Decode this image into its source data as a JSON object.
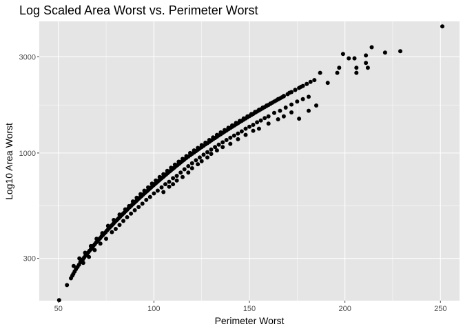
{
  "chart_data": {
    "type": "scatter",
    "title": "Log Scaled Area Worst vs. Perimeter Worst",
    "xlabel": "Perimeter Worst",
    "ylabel": "Log10 Area Worst",
    "xlim": [
      40,
      260
    ],
    "ylim": [
      185,
      4500
    ],
    "y_scale": "log10",
    "x_ticks": [
      50,
      100,
      150,
      200,
      250
    ],
    "x_tick_labels": [
      "50",
      "100",
      "150",
      "200",
      "250"
    ],
    "y_ticks": [
      300,
      1000,
      3000
    ],
    "y_tick_labels": [
      "300",
      "1000",
      "3000"
    ],
    "grid": true,
    "legend": "none",
    "colors": {
      "panel": "#e5e5e5",
      "grid": "#ffffff",
      "point": "#000000",
      "tick": "#4d4d4d"
    },
    "points": [
      [
        50.4,
        186
      ],
      [
        54.5,
        221
      ],
      [
        56.6,
        239
      ],
      [
        57.3,
        246
      ],
      [
        57.8,
        251
      ],
      [
        58.5,
        258
      ],
      [
        59.2,
        265
      ],
      [
        60.0,
        272
      ],
      [
        60.8,
        279
      ],
      [
        61.5,
        287
      ],
      [
        62.1,
        290
      ],
      [
        62.9,
        297
      ],
      [
        63.5,
        303
      ],
      [
        64.2,
        309
      ],
      [
        64.9,
        312
      ],
      [
        65.6,
        321
      ],
      [
        66.3,
        327
      ],
      [
        67.0,
        333
      ],
      [
        67.8,
        340
      ],
      [
        68.4,
        347
      ],
      [
        69.1,
        353
      ],
      [
        69.8,
        360
      ],
      [
        70.5,
        365
      ],
      [
        71.2,
        372
      ],
      [
        71.9,
        378
      ],
      [
        72.6,
        386
      ],
      [
        73.3,
        391
      ],
      [
        74.0,
        398
      ],
      [
        74.7,
        404
      ],
      [
        75.4,
        412
      ],
      [
        76.1,
        419
      ],
      [
        76.8,
        426
      ],
      [
        77.5,
        433
      ],
      [
        78.2,
        440
      ],
      [
        78.9,
        447
      ],
      [
        79.6,
        455
      ],
      [
        80.3,
        462
      ],
      [
        81.0,
        469
      ],
      [
        81.7,
        476
      ],
      [
        82.4,
        484
      ],
      [
        83.1,
        491
      ],
      [
        83.8,
        499
      ],
      [
        84.5,
        506
      ],
      [
        85.2,
        514
      ],
      [
        85.9,
        522
      ],
      [
        86.6,
        530
      ],
      [
        87.3,
        538
      ],
      [
        88.0,
        546
      ],
      [
        88.7,
        554
      ],
      [
        89.4,
        562
      ],
      [
        90.1,
        570
      ],
      [
        90.8,
        578
      ],
      [
        91.5,
        587
      ],
      [
        92.2,
        595
      ],
      [
        92.9,
        604
      ],
      [
        93.6,
        612
      ],
      [
        94.3,
        621
      ],
      [
        95.0,
        630
      ],
      [
        95.7,
        638
      ],
      [
        96.4,
        647
      ],
      [
        97.1,
        656
      ],
      [
        97.8,
        665
      ],
      [
        98.5,
        674
      ],
      [
        99.2,
        684
      ],
      [
        99.9,
        693
      ],
      [
        100.6,
        702
      ],
      [
        101.3,
        712
      ],
      [
        102.0,
        721
      ],
      [
        102.7,
        731
      ],
      [
        103.4,
        741
      ],
      [
        104.1,
        750
      ],
      [
        104.8,
        760
      ],
      [
        105.5,
        770
      ],
      [
        106.2,
        780
      ],
      [
        106.9,
        790
      ],
      [
        107.6,
        801
      ],
      [
        108.3,
        811
      ],
      [
        109.0,
        821
      ],
      [
        109.7,
        832
      ],
      [
        110.4,
        842
      ],
      [
        111.1,
        853
      ],
      [
        111.8,
        864
      ],
      [
        112.5,
        874
      ],
      [
        113.2,
        885
      ],
      [
        113.9,
        896
      ],
      [
        114.6,
        907
      ],
      [
        115.3,
        919
      ],
      [
        116.0,
        930
      ],
      [
        117.0,
        945
      ],
      [
        118.0,
        960
      ],
      [
        119.0,
        975
      ],
      [
        120.0,
        991
      ],
      [
        121.0,
        1006
      ],
      [
        122.0,
        1022
      ],
      [
        123.0,
        1038
      ],
      [
        124.0,
        1054
      ],
      [
        125.0,
        1070
      ],
      [
        126.0,
        1086
      ],
      [
        127.0,
        1103
      ],
      [
        128.0,
        1119
      ],
      [
        129.0,
        1136
      ],
      [
        130.0,
        1153
      ],
      [
        131.0,
        1170
      ],
      [
        132.0,
        1187
      ],
      [
        133.0,
        1205
      ],
      [
        134.0,
        1222
      ],
      [
        135.0,
        1240
      ],
      [
        136.0,
        1258
      ],
      [
        137.0,
        1276
      ],
      [
        138.0,
        1294
      ],
      [
        139.0,
        1312
      ],
      [
        140.0,
        1331
      ],
      [
        141.0,
        1349
      ],
      [
        142.0,
        1368
      ],
      [
        143.0,
        1387
      ],
      [
        144.0,
        1406
      ],
      [
        145.0,
        1425
      ],
      [
        146.0,
        1445
      ],
      [
        147.0,
        1464
      ],
      [
        148.0,
        1484
      ],
      [
        149.0,
        1504
      ],
      [
        150.0,
        1524
      ],
      [
        151.0,
        1544
      ],
      [
        152.0,
        1564
      ],
      [
        153.0,
        1585
      ],
      [
        154.0,
        1606
      ],
      [
        155.0,
        1627
      ],
      [
        156.0,
        1648
      ],
      [
        157.0,
        1669
      ],
      [
        158.0,
        1690
      ],
      [
        159.0,
        1712
      ],
      [
        160.0,
        1733
      ],
      [
        161.0,
        1755
      ],
      [
        162.0,
        1777
      ],
      [
        163.0,
        1800
      ],
      [
        164.0,
        1822
      ],
      [
        165.0,
        1845
      ],
      [
        166.0,
        1867
      ],
      [
        167.0,
        1890
      ],
      [
        168.0,
        1913
      ],
      [
        170.0,
        1960
      ],
      [
        172.0,
        2007
      ],
      [
        174.0,
        2054
      ],
      [
        176.0,
        2103
      ],
      [
        178.0,
        2152
      ],
      [
        180.0,
        2201
      ],
      [
        182.0,
        2252
      ],
      [
        184.0,
        2302
      ],
      [
        63.0,
        285
      ],
      [
        66.0,
        305
      ],
      [
        69.0,
        330
      ],
      [
        72.0,
        355
      ],
      [
        75.0,
        375
      ],
      [
        78.0,
        405
      ],
      [
        80.0,
        420
      ],
      [
        82.0,
        440
      ],
      [
        84.0,
        460
      ],
      [
        86.0,
        480
      ],
      [
        88.0,
        500
      ],
      [
        90.0,
        520
      ],
      [
        92.0,
        540
      ],
      [
        94.0,
        560
      ],
      [
        96.0,
        585
      ],
      [
        98.0,
        605
      ],
      [
        100.0,
        630
      ],
      [
        102.0,
        650
      ],
      [
        104.0,
        675
      ],
      [
        106.0,
        700
      ],
      [
        108.0,
        720
      ],
      [
        110.0,
        750
      ],
      [
        112.0,
        770
      ],
      [
        114.0,
        800
      ],
      [
        116.0,
        830
      ],
      [
        118.0,
        860
      ],
      [
        120.0,
        890
      ],
      [
        122.0,
        920
      ],
      [
        124.0,
        950
      ],
      [
        126.0,
        980
      ],
      [
        128.0,
        1010
      ],
      [
        130.0,
        1040
      ],
      [
        132.0,
        1070
      ],
      [
        134.0,
        1100
      ],
      [
        136.0,
        1130
      ],
      [
        138.0,
        1160
      ],
      [
        140.0,
        1190
      ],
      [
        142.0,
        1220
      ],
      [
        144.0,
        1250
      ],
      [
        146.0,
        1280
      ],
      [
        148.0,
        1320
      ],
      [
        150.0,
        1350
      ],
      [
        152.0,
        1380
      ],
      [
        154.0,
        1420
      ],
      [
        156.0,
        1450
      ],
      [
        158.0,
        1490
      ],
      [
        160.0,
        1520
      ],
      [
        163.0,
        1580
      ],
      [
        166.0,
        1620
      ],
      [
        169.0,
        1680
      ],
      [
        172.0,
        1740
      ],
      [
        175.0,
        1800
      ],
      [
        178.0,
        1850
      ],
      [
        181.0,
        1900
      ],
      [
        58.0,
        275
      ],
      [
        61.0,
        300
      ],
      [
        64.0,
        320
      ],
      [
        67.0,
        345
      ],
      [
        70.0,
        375
      ],
      [
        73.0,
        400
      ],
      [
        76.0,
        435
      ],
      [
        79.0,
        465
      ],
      [
        82.0,
        495
      ],
      [
        85.0,
        525
      ],
      [
        87.0,
        545
      ],
      [
        89.0,
        575
      ],
      [
        91.0,
        600
      ],
      [
        93.0,
        625
      ],
      [
        95.0,
        650
      ],
      [
        97.0,
        675
      ],
      [
        99.0,
        705
      ],
      [
        101.0,
        730
      ],
      [
        103.0,
        760
      ],
      [
        105.0,
        785
      ],
      [
        107.0,
        815
      ],
      [
        109.0,
        845
      ],
      [
        111.0,
        875
      ],
      [
        113.0,
        905
      ],
      [
        115.0,
        935
      ],
      [
        117.0,
        965
      ],
      [
        119.0,
        1000
      ],
      [
        121.0,
        1030
      ],
      [
        123.0,
        1060
      ],
      [
        125.0,
        1095
      ],
      [
        127.0,
        1125
      ],
      [
        129.0,
        1160
      ],
      [
        131.0,
        1195
      ],
      [
        133.0,
        1230
      ],
      [
        135.0,
        1265
      ],
      [
        137.0,
        1300
      ],
      [
        139.0,
        1335
      ],
      [
        141.0,
        1370
      ],
      [
        143.0,
        1410
      ],
      [
        145.0,
        1445
      ],
      [
        147.0,
        1485
      ],
      [
        149.0,
        1520
      ],
      [
        151.0,
        1560
      ],
      [
        153.0,
        1600
      ],
      [
        155.0,
        1640
      ],
      [
        157.0,
        1680
      ],
      [
        159.0,
        1720
      ],
      [
        161.0,
        1760
      ],
      [
        165.0,
        1850
      ],
      [
        168.0,
        1920
      ],
      [
        171.0,
        1990
      ],
      [
        174.0,
        2060
      ],
      [
        177.0,
        2130
      ],
      [
        180.0,
        2200
      ],
      [
        105.0,
        640
      ],
      [
        108.0,
        680
      ],
      [
        110.0,
        700
      ],
      [
        112.0,
        730
      ],
      [
        115.0,
        760
      ],
      [
        118.0,
        800
      ],
      [
        120.0,
        840
      ],
      [
        123.0,
        880
      ],
      [
        125.0,
        910
      ],
      [
        128.0,
        950
      ],
      [
        130.0,
        990
      ],
      [
        133.0,
        1030
      ],
      [
        136.0,
        1070
      ],
      [
        140.0,
        1110
      ],
      [
        144.0,
        1170
      ],
      [
        148.0,
        1230
      ],
      [
        152.0,
        1290
      ],
      [
        155.0,
        1320
      ],
      [
        160.0,
        1400
      ],
      [
        165.0,
        1470
      ],
      [
        168.0,
        1520
      ],
      [
        172.0,
        1590
      ],
      [
        176.0,
        1480
      ],
      [
        181.0,
        1620
      ],
      [
        185.0,
        1720
      ],
      [
        187.0,
        2500
      ],
      [
        191.0,
        2230
      ],
      [
        196.0,
        2500
      ],
      [
        197.0,
        2650
      ],
      [
        199.0,
        3100
      ],
      [
        202.0,
        2950
      ],
      [
        205.0,
        2950
      ],
      [
        206.0,
        2650
      ],
      [
        206.0,
        2500
      ],
      [
        211.0,
        2800
      ],
      [
        211.0,
        3050
      ],
      [
        212.0,
        2650
      ],
      [
        214.0,
        3350
      ],
      [
        221.0,
        3150
      ],
      [
        229.0,
        3200
      ],
      [
        251.0,
        4250
      ]
    ]
  }
}
